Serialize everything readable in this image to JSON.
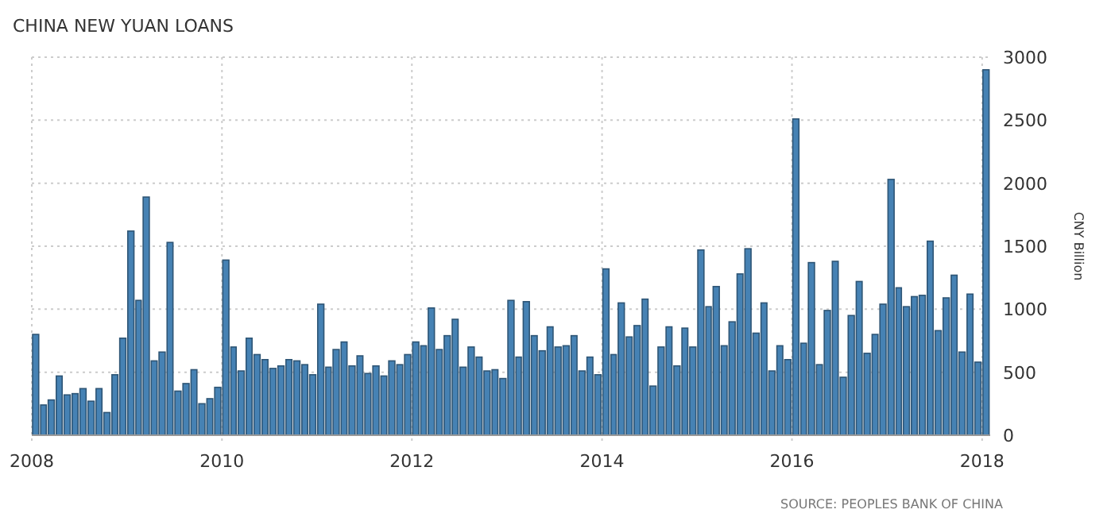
{
  "chart_data": {
    "type": "bar",
    "title": "CHINA NEW YUAN LOANS",
    "ylabel": "CNY Billion",
    "annotations": [
      "SOURCE: PEOPLES BANK OF CHINA"
    ],
    "x": [
      "2008-01",
      "2008-02",
      "2008-03",
      "2008-04",
      "2008-05",
      "2008-06",
      "2008-07",
      "2008-08",
      "2008-09",
      "2008-10",
      "2008-11",
      "2008-12",
      "2009-01",
      "2009-02",
      "2009-03",
      "2009-04",
      "2009-05",
      "2009-06",
      "2009-07",
      "2009-08",
      "2009-09",
      "2009-10",
      "2009-11",
      "2009-12",
      "2010-01",
      "2010-02",
      "2010-03",
      "2010-04",
      "2010-05",
      "2010-06",
      "2010-07",
      "2010-08",
      "2010-09",
      "2010-10",
      "2010-11",
      "2010-12",
      "2011-01",
      "2011-02",
      "2011-03",
      "2011-04",
      "2011-05",
      "2011-06",
      "2011-07",
      "2011-08",
      "2011-09",
      "2011-10",
      "2011-11",
      "2011-12",
      "2012-01",
      "2012-02",
      "2012-03",
      "2012-04",
      "2012-05",
      "2012-06",
      "2012-07",
      "2012-08",
      "2012-09",
      "2012-10",
      "2012-11",
      "2012-12",
      "2013-01",
      "2013-02",
      "2013-03",
      "2013-04",
      "2013-05",
      "2013-06",
      "2013-07",
      "2013-08",
      "2013-09",
      "2013-10",
      "2013-11",
      "2013-12",
      "2014-01",
      "2014-02",
      "2014-03",
      "2014-04",
      "2014-05",
      "2014-06",
      "2014-07",
      "2014-08",
      "2014-09",
      "2014-10",
      "2014-11",
      "2014-12",
      "2015-01",
      "2015-02",
      "2015-03",
      "2015-04",
      "2015-05",
      "2015-06",
      "2015-07",
      "2015-08",
      "2015-09",
      "2015-10",
      "2015-11",
      "2015-12",
      "2016-01",
      "2016-02",
      "2016-03",
      "2016-04",
      "2016-05",
      "2016-06",
      "2016-07",
      "2016-08",
      "2016-09",
      "2016-10",
      "2016-11",
      "2016-12",
      "2017-01",
      "2017-02",
      "2017-03",
      "2017-04",
      "2017-05",
      "2017-06",
      "2017-07",
      "2017-08",
      "2017-09",
      "2017-10",
      "2017-11",
      "2017-12",
      "2018-01"
    ],
    "values": [
      800,
      240,
      280,
      470,
      320,
      330,
      370,
      270,
      370,
      180,
      480,
      770,
      1620,
      1070,
      1890,
      590,
      660,
      1530,
      350,
      410,
      520,
      250,
      290,
      380,
      1390,
      700,
      510,
      770,
      640,
      600,
      530,
      550,
      600,
      590,
      560,
      480,
      1040,
      540,
      680,
      740,
      550,
      630,
      490,
      550,
      470,
      590,
      560,
      640,
      740,
      710,
      1010,
      680,
      790,
      920,
      540,
      700,
      620,
      510,
      520,
      450,
      1070,
      620,
      1060,
      790,
      670,
      860,
      700,
      710,
      790,
      510,
      620,
      480,
      1320,
      640,
      1050,
      780,
      870,
      1080,
      390,
      700,
      860,
      550,
      850,
      700,
      1470,
      1020,
      1180,
      710,
      900,
      1280,
      1480,
      810,
      1050,
      510,
      710,
      600,
      2510,
      730,
      1370,
      560,
      990,
      1380,
      460,
      950,
      1220,
      650,
      800,
      1040,
      2030,
      1170,
      1020,
      1100,
      1110,
      1540,
      830,
      1090,
      1270,
      660,
      1120,
      580,
      2900
    ],
    "color": "#4682b4",
    "xlim": [
      "2008-01",
      "2018-02"
    ],
    "xticks": [
      {
        "value": "2008",
        "label": "2008"
      },
      {
        "value": "2010",
        "label": "2010"
      },
      {
        "value": "2012",
        "label": "2012"
      },
      {
        "value": "2014",
        "label": "2014"
      },
      {
        "value": "2016",
        "label": "2016"
      },
      {
        "value": "2018",
        "label": "2018"
      }
    ],
    "ylim": [
      0,
      3000
    ],
    "yticks": [
      0,
      500,
      1000,
      1500,
      2000,
      2500,
      3000
    ],
    "grid": true
  }
}
